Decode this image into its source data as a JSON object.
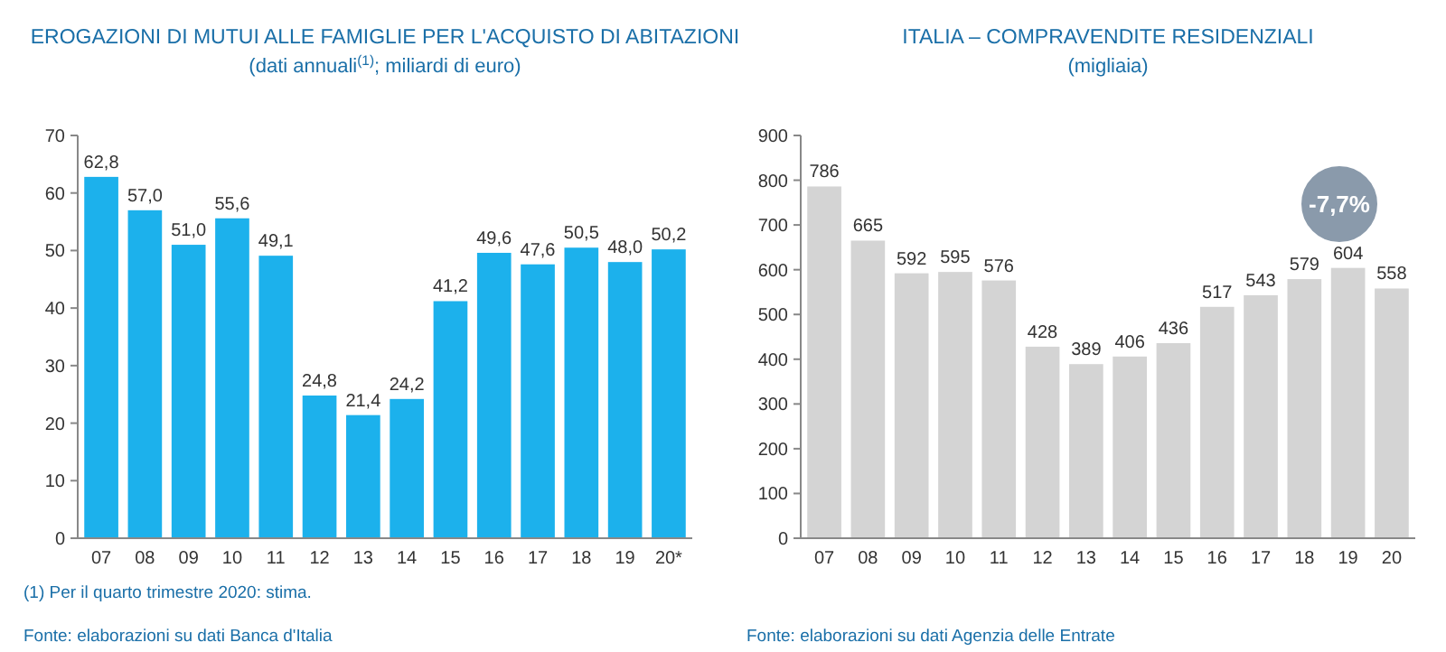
{
  "chart_data": [
    {
      "type": "bar",
      "title": "EROGAZIONI DI MUTUI ALLE FAMIGLIE PER L'ACQUISTO DI ABITAZIONI",
      "subtitle": "(dati annuali$^{(1)}$; miliardi di euro)",
      "categories": [
        "07",
        "08",
        "09",
        "10",
        "11",
        "12",
        "13",
        "14",
        "15",
        "16",
        "17",
        "18",
        "19",
        "20*"
      ],
      "values": [
        62.8,
        57.0,
        51.0,
        55.6,
        49.1,
        24.8,
        21.4,
        24.2,
        41.2,
        49.6,
        47.6,
        50.5,
        48.0,
        50.2
      ],
      "value_labels": [
        "62,8",
        "57,0",
        "51,0",
        "55,6",
        "49,1",
        "24,8",
        "21,4",
        "24,2",
        "41,2",
        "49,6",
        "47,6",
        "50,5",
        "48,0",
        "50,2"
      ],
      "color": "#1cb1ec",
      "ylim": [
        0,
        70
      ],
      "yticks": [
        0,
        10,
        20,
        30,
        40,
        50,
        60,
        70
      ],
      "annotations": [
        "(1) Per il quarto trimestre 2020: stima.",
        "Fonte: elaborazioni su dati Banca d'Italia"
      ]
    },
    {
      "type": "bar",
      "title": "ITALIA – COMPRAVENDITE RESIDENZIALI",
      "subtitle": "(migliaia)",
      "categories": [
        "07",
        "08",
        "09",
        "10",
        "11",
        "12",
        "13",
        "14",
        "15",
        "16",
        "17",
        "18",
        "19",
        "20"
      ],
      "values": [
        786,
        665,
        592,
        595,
        576,
        428,
        389,
        406,
        436,
        517,
        543,
        579,
        604,
        558
      ],
      "data_labels": true,
      "color": "#d4d4d4",
      "ylim": [
        0,
        900
      ],
      "yticks": [
        0,
        100,
        200,
        300,
        400,
        500,
        600,
        700,
        800,
        900
      ],
      "annotations": [
        "-7,7%",
        "Fonte: elaborazioni su dati Agenzia delle Entrate"
      ]
    }
  ]
}
